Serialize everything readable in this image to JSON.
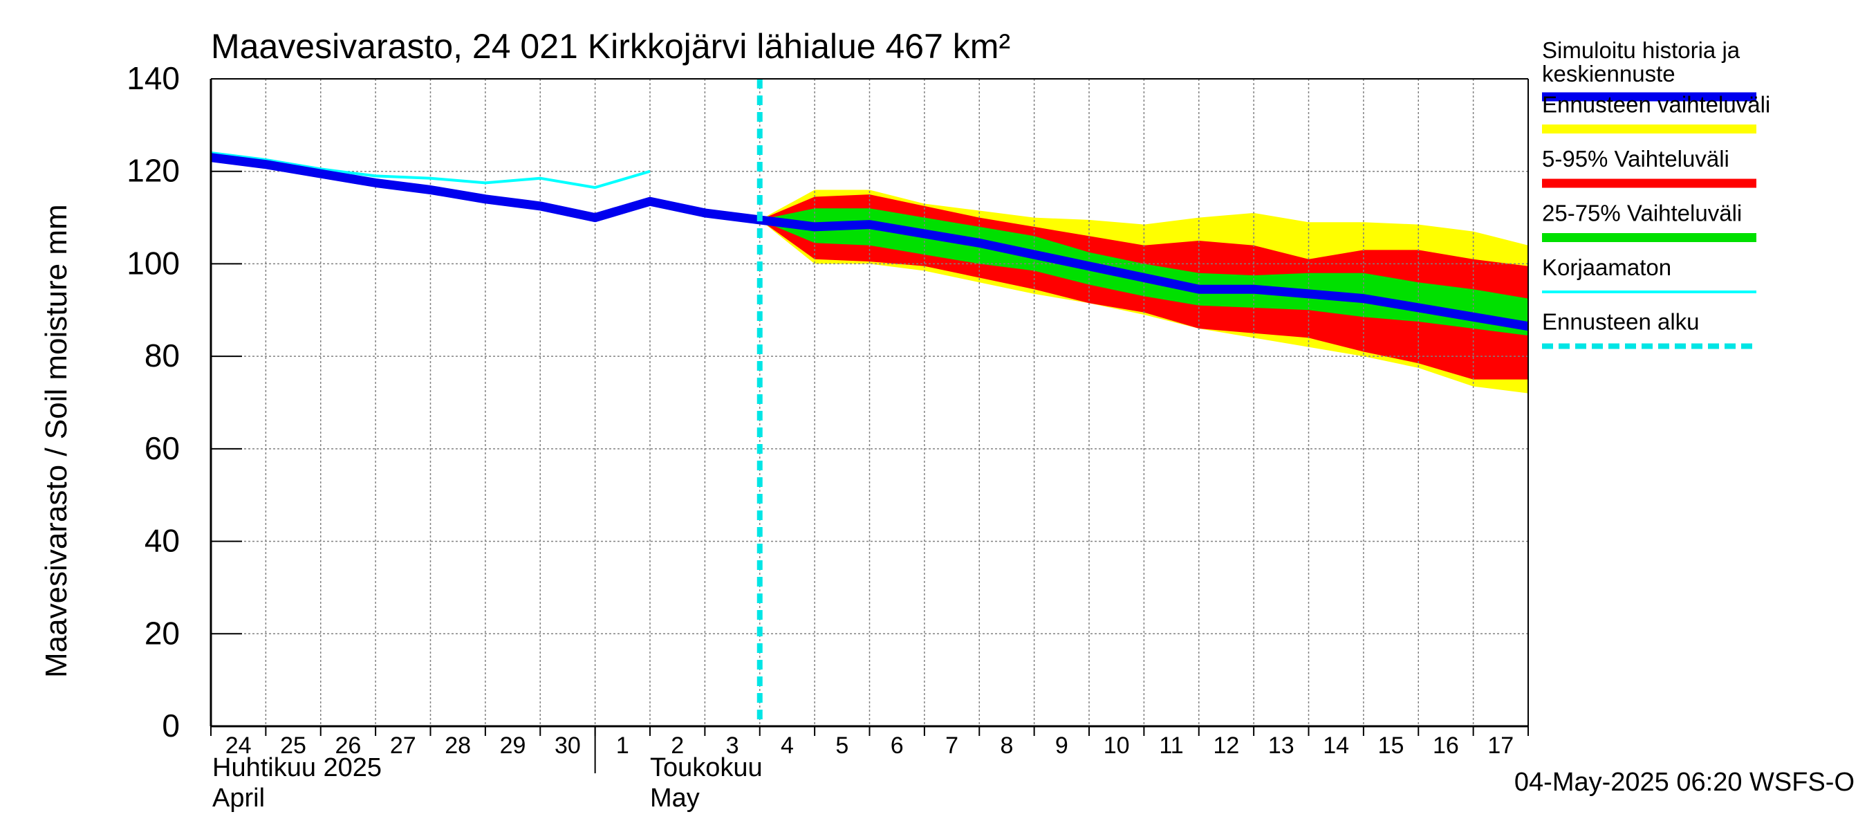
{
  "chart_data": {
    "type": "area",
    "title": "Maavesivarasto, 24 021 Kirkkojärvi lähialue 467 km²",
    "ylabel": "Maavesivarasto / Soil moisture   mm",
    "ylim": [
      0,
      140
    ],
    "yticks": [
      0,
      20,
      40,
      60,
      80,
      100,
      120,
      140
    ],
    "x_start": "2025-04-24",
    "x_end": "2025-05-18",
    "forecast_start": "2025-05-04",
    "x_day_labels": [
      "24",
      "25",
      "26",
      "27",
      "28",
      "29",
      "30",
      "1",
      "2",
      "3",
      "4",
      "5",
      "6",
      "7",
      "8",
      "9",
      "10",
      "11",
      "12",
      "13",
      "14",
      "15",
      "16",
      "17"
    ],
    "month_labels": [
      {
        "line1": "Huhtikuu  2025",
        "line2": "April",
        "date": "2025-04-24"
      },
      {
        "line1": "Toukokuu",
        "line2": "May",
        "date": "2025-05-02"
      }
    ],
    "timestamp": "04-May-2025 06:20 WSFS-O",
    "colors": {
      "simulated": "#0000ee",
      "full_range": "#ffff00",
      "p5_95": "#ff0000",
      "p25_75": "#00e000",
      "uncorrected": "#00ffff",
      "forecast_start": "#00e5e5",
      "grid": "#808080"
    },
    "legend": [
      {
        "key": "simulated",
        "label1": "Simuloitu historia ja",
        "label2": "keskiennuste"
      },
      {
        "key": "full_range",
        "label1": "Ennusteen vaihteluväli",
        "label2": ""
      },
      {
        "key": "p5_95",
        "label1": "5-95% Vaihteluväli",
        "label2": ""
      },
      {
        "key": "p25_75",
        "label1": "25-75% Vaihteluväli",
        "label2": ""
      },
      {
        "key": "uncorrected",
        "label1": "Korjaamaton",
        "label2": ""
      },
      {
        "key": "forecast_start",
        "label1": "Ennusteen alku",
        "label2": ""
      }
    ],
    "series": {
      "simulated": {
        "x": [
          "2025-04-24",
          "2025-04-25",
          "2025-04-26",
          "2025-04-27",
          "2025-04-28",
          "2025-04-29",
          "2025-04-30",
          "2025-05-01",
          "2025-05-02",
          "2025-05-03",
          "2025-05-04",
          "2025-05-05",
          "2025-05-06",
          "2025-05-07",
          "2025-05-08",
          "2025-05-09",
          "2025-05-10",
          "2025-05-11",
          "2025-05-12",
          "2025-05-13",
          "2025-05-14",
          "2025-05-15",
          "2025-05-16",
          "2025-05-17",
          "2025-05-18"
        ],
        "y": [
          123,
          121.5,
          119.5,
          117.5,
          116,
          114,
          112.5,
          110,
          113.5,
          111,
          109.5,
          108,
          108.5,
          106.5,
          104.5,
          102,
          99.5,
          97,
          94.5,
          94.5,
          93.5,
          92.5,
          90.5,
          88.5,
          86.5
        ]
      },
      "uncorrected": {
        "x": [
          "2025-04-24",
          "2025-04-25",
          "2025-04-26",
          "2025-04-27",
          "2025-04-28",
          "2025-04-29",
          "2025-04-30",
          "2025-05-01",
          "2025-05-02"
        ],
        "y": [
          124,
          122.5,
          120.5,
          119,
          118.5,
          117.5,
          118.5,
          116.5,
          120
        ]
      },
      "bands": {
        "x": [
          "2025-05-04",
          "2025-05-05",
          "2025-05-06",
          "2025-05-07",
          "2025-05-08",
          "2025-05-09",
          "2025-05-10",
          "2025-05-11",
          "2025-05-12",
          "2025-05-13",
          "2025-05-14",
          "2025-05-15",
          "2025-05-16",
          "2025-05-17",
          "2025-05-18"
        ],
        "full_max": [
          109.5,
          116,
          116,
          113,
          111.5,
          110,
          109.5,
          108.5,
          110,
          111,
          109,
          109,
          108.5,
          107,
          104
        ],
        "p95": [
          109.5,
          114.5,
          115,
          112.5,
          110,
          108,
          106,
          104,
          105,
          104,
          101,
          103,
          103,
          101,
          99.5
        ],
        "p75": [
          109.5,
          112,
          112,
          110,
          108,
          106,
          102.5,
          100,
          98,
          97.5,
          98,
          98,
          96,
          94.5,
          92.5
        ],
        "p25": [
          109.5,
          104.5,
          104,
          102,
          100,
          98.5,
          95.5,
          93,
          91,
          90.5,
          90,
          88.5,
          87.5,
          86,
          84.5
        ],
        "p5": [
          109.5,
          101,
          100.5,
          99.5,
          97,
          94.5,
          91.5,
          89.5,
          86,
          85,
          84,
          81,
          78.5,
          75,
          75
        ],
        "full_min": [
          109.5,
          100,
          100,
          98.5,
          96,
          93.5,
          91.5,
          89,
          86,
          84,
          82,
          80,
          77.5,
          73.5,
          72
        ]
      }
    }
  }
}
